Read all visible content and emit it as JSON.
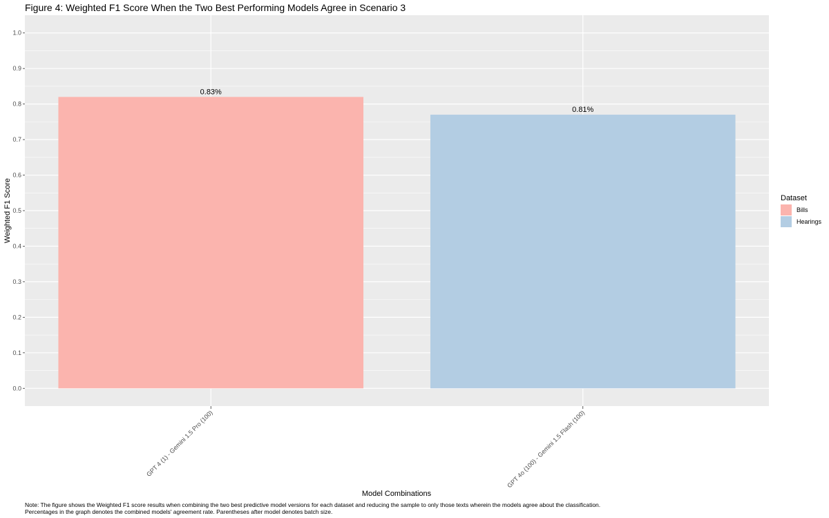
{
  "chart_data": {
    "type": "bar",
    "title": "Figure 4: Weighted F1 Score When the Two Best Performing Models Agree in Scenario 3",
    "xlabel": "Model Combinations",
    "ylabel": "Weighted F1 Score",
    "ylim": [
      -0.05,
      1.05
    ],
    "yticks": [
      "0.0",
      "0.1",
      "0.2",
      "0.3",
      "0.4",
      "0.5",
      "0.6",
      "0.7",
      "0.8",
      "0.9",
      "1.0"
    ],
    "categories": [
      "GPT 4 (1) - Gemini 1.5 Pro (100)",
      "GPT 4o (100) - Gemini 1.5 Flash (100)"
    ],
    "values": [
      0.82,
      0.77
    ],
    "data_labels": [
      "0.83%",
      "0.81%"
    ],
    "series_by_bar": [
      "Bills",
      "Hearings"
    ],
    "grid": true,
    "legend": {
      "title": "Dataset",
      "placement": "right",
      "entries": [
        {
          "name": "Bills",
          "color": "#fbb4ae"
        },
        {
          "name": "Hearings",
          "color": "#b3cde3"
        }
      ]
    },
    "colors": {
      "panel_background": "#ebebeb",
      "gridline": "#ffffff"
    }
  },
  "note": {
    "line1": "Note: The figure shows the Weighted F1 score results when combining the two best predictive model versions for each dataset and reducing the sample to only those texts wherein the models agree about the classification.",
    "line2": "Percentages in the graph denotes the combined models' agreement rate. Parentheses after model denotes batch size."
  }
}
